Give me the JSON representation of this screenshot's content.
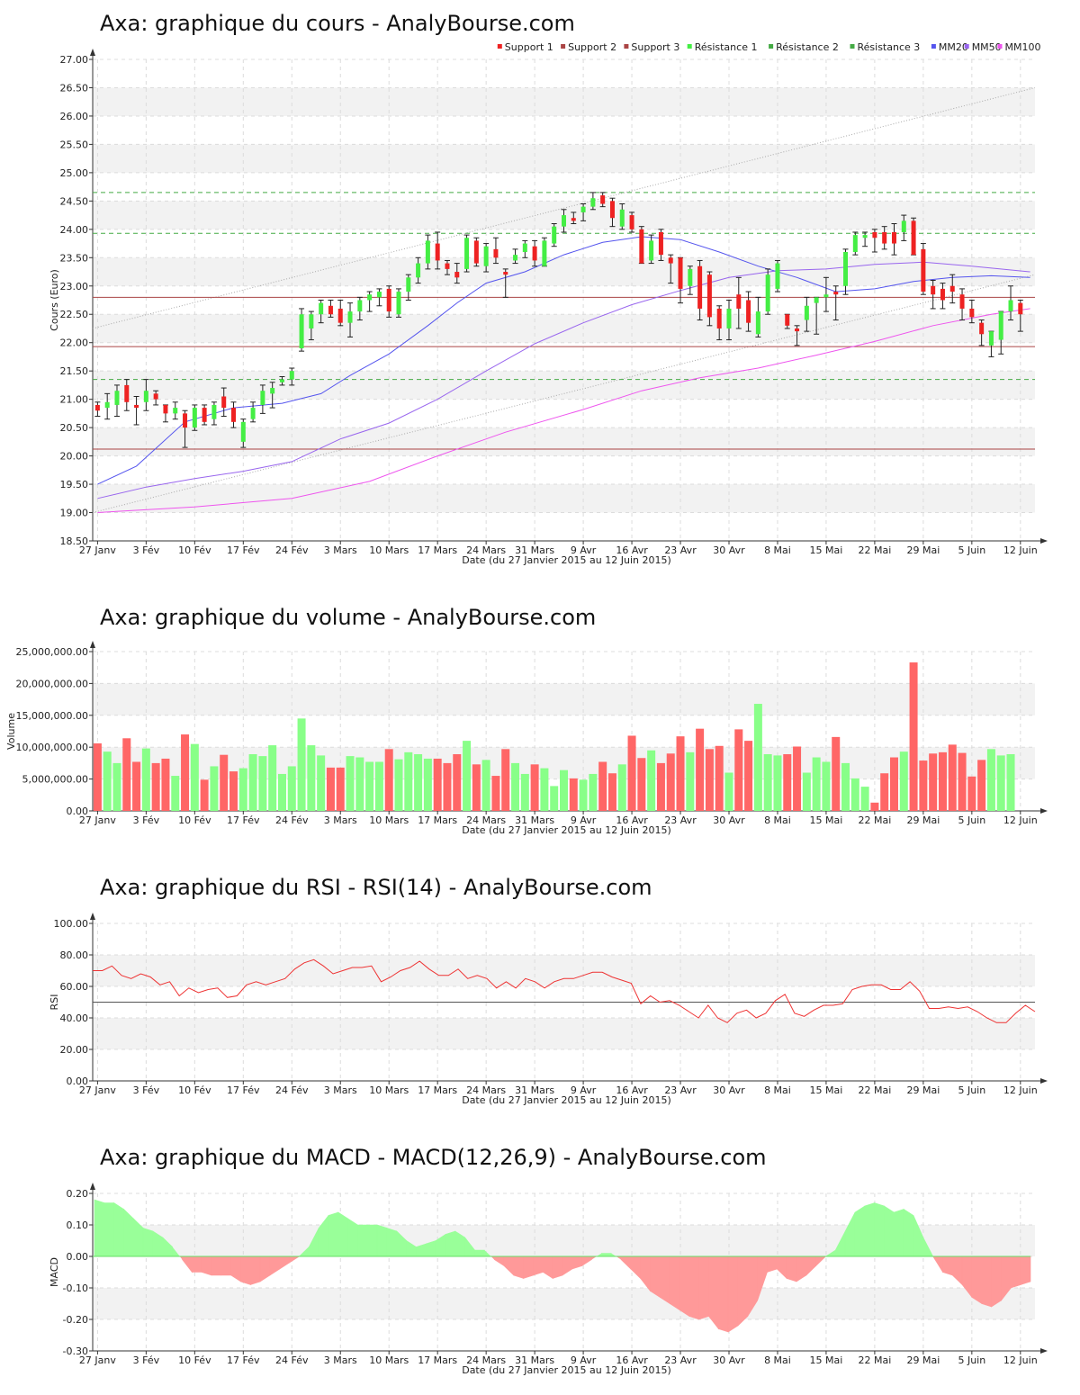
{
  "titles": {
    "price": "Axa: graphique du cours - AnalyBourse.com",
    "volume": "Axa: graphique du volume - AnalyBourse.com",
    "rsi": "Axa: graphique du RSI - RSI(14) - AnalyBourse.com",
    "macd": "Axa: graphique du MACD - MACD(12,26,9) - AnalyBourse.com"
  },
  "xlabel": "Date (du 27 Janvier 2015 au 12 Juin 2015)",
  "colors": {
    "up": "#44ee44",
    "down": "#ee2222",
    "vol_up": "#88ff88",
    "vol_down": "#ff6666",
    "support": "#aa4444",
    "resistance": "#44aa44",
    "mm20": "#5555ee",
    "mm50": "#9966ee",
    "mm100": "#ee55ee",
    "rsi_line": "#ee3333",
    "macd_pos": "#99ff99",
    "macd_neg": "#ff9999"
  },
  "chart_data": [
    {
      "type": "candlestick",
      "title": "Axa: graphique du cours - AnalyBourse.com",
      "xlabel": "Date (du 27 Janvier 2015 au 12 Juin 2015)",
      "ylabel": "Cours (Euro)",
      "ylim": [
        18.5,
        27.0
      ],
      "yticks": [
        "18.50",
        "19.00",
        "19.50",
        "20.00",
        "20.50",
        "21.00",
        "21.50",
        "22.00",
        "22.50",
        "23.00",
        "23.50",
        "24.00",
        "24.50",
        "25.00",
        "25.50",
        "26.00",
        "26.50",
        "27.00"
      ],
      "xticks": [
        "27 Janv",
        "3 Fév",
        "10 Fév",
        "17 Fév",
        "24 Fév",
        "3 Mars",
        "10 Mars",
        "17 Mars",
        "24 Mars",
        "31 Mars",
        "9 Avr",
        "16 Avr",
        "23 Avr",
        "30 Avr",
        "8 Mai",
        "15 Mai",
        "22 Mai",
        "29 Mai",
        "5 Juin",
        "12 Juin"
      ],
      "legend": [
        "Support 1",
        "Support 2",
        "Support 3",
        "Résistance 1",
        "Résistance 2",
        "Résistance 3",
        "MM20",
        "MM50",
        "MM100"
      ],
      "legend_position": "top-right",
      "levels": {
        "support_1": 22.8,
        "support_2": 21.93,
        "support_3": 20.12,
        "resistance_1": 24.65,
        "resistance_2": 23.93,
        "resistance_3": 21.35
      },
      "trend_upper": [
        22.25,
        26.5
      ],
      "trend_lower": [
        19.0,
        23.2
      ],
      "ohlc": [
        [
          20.9,
          20.95,
          20.7,
          20.8
        ],
        [
          20.85,
          21.1,
          20.65,
          20.95
        ],
        [
          20.9,
          21.25,
          20.7,
          21.15
        ],
        [
          21.25,
          21.35,
          20.8,
          20.95
        ],
        [
          20.9,
          21.05,
          20.55,
          20.85
        ],
        [
          20.95,
          21.35,
          20.8,
          21.15
        ],
        [
          21.1,
          21.15,
          20.9,
          21.0
        ],
        [
          20.9,
          20.9,
          20.6,
          20.75
        ],
        [
          20.75,
          20.95,
          20.65,
          20.85
        ],
        [
          20.75,
          20.8,
          20.15,
          20.5
        ],
        [
          20.5,
          20.9,
          20.45,
          20.85
        ],
        [
          20.85,
          20.9,
          20.55,
          20.6
        ],
        [
          20.65,
          20.95,
          20.55,
          20.9
        ],
        [
          21.05,
          21.2,
          20.7,
          20.85
        ],
        [
          20.85,
          20.95,
          20.5,
          20.6
        ],
        [
          20.25,
          20.65,
          20.15,
          20.6
        ],
        [
          20.65,
          20.95,
          20.6,
          20.85
        ],
        [
          20.9,
          21.25,
          20.75,
          21.15
        ],
        [
          21.1,
          21.3,
          20.85,
          21.2
        ],
        [
          21.3,
          21.4,
          21.25,
          21.35
        ],
        [
          21.35,
          21.55,
          21.25,
          21.5
        ],
        [
          21.9,
          22.6,
          21.85,
          22.5
        ],
        [
          22.25,
          22.55,
          22.05,
          22.5
        ],
        [
          22.5,
          22.75,
          22.35,
          22.7
        ],
        [
          22.65,
          22.75,
          22.45,
          22.5
        ],
        [
          22.6,
          22.75,
          22.3,
          22.35
        ],
        [
          22.35,
          22.7,
          22.1,
          22.55
        ],
        [
          22.55,
          22.8,
          22.4,
          22.75
        ],
        [
          22.75,
          22.9,
          22.55,
          22.85
        ],
        [
          22.8,
          22.95,
          22.65,
          22.9
        ],
        [
          22.95,
          23.0,
          22.45,
          22.55
        ],
        [
          22.5,
          22.95,
          22.45,
          22.9
        ],
        [
          22.9,
          23.2,
          22.75,
          23.15
        ],
        [
          23.15,
          23.5,
          23.05,
          23.4
        ],
        [
          23.4,
          23.9,
          23.3,
          23.8
        ],
        [
          23.75,
          23.95,
          23.3,
          23.45
        ],
        [
          23.4,
          23.45,
          23.2,
          23.3
        ],
        [
          23.25,
          23.4,
          23.05,
          23.15
        ],
        [
          23.3,
          23.9,
          23.25,
          23.85
        ],
        [
          23.8,
          23.85,
          23.35,
          23.4
        ],
        [
          23.35,
          23.75,
          23.25,
          23.7
        ],
        [
          23.65,
          23.85,
          23.4,
          23.5
        ],
        [
          23.25,
          23.3,
          22.8,
          23.2
        ],
        [
          23.45,
          23.65,
          23.4,
          23.55
        ],
        [
          23.6,
          23.8,
          23.5,
          23.75
        ],
        [
          23.7,
          23.8,
          23.35,
          23.45
        ],
        [
          23.35,
          23.85,
          23.35,
          23.8
        ],
        [
          23.75,
          24.1,
          23.7,
          24.05
        ],
        [
          24.05,
          24.35,
          23.95,
          24.25
        ],
        [
          24.2,
          24.3,
          24.1,
          24.15
        ],
        [
          24.3,
          24.45,
          24.15,
          24.4
        ],
        [
          24.4,
          24.65,
          24.35,
          24.55
        ],
        [
          24.6,
          24.65,
          24.4,
          24.45
        ],
        [
          24.5,
          24.55,
          24.05,
          24.2
        ],
        [
          24.05,
          24.45,
          24.0,
          24.35
        ],
        [
          24.25,
          24.3,
          23.95,
          24.0
        ],
        [
          24.0,
          24.05,
          23.4,
          23.4
        ],
        [
          23.45,
          23.9,
          23.4,
          23.8
        ],
        [
          23.95,
          24.0,
          23.45,
          23.55
        ],
        [
          23.5,
          23.55,
          23.05,
          23.4
        ],
        [
          23.5,
          23.5,
          22.7,
          22.95
        ],
        [
          23.0,
          23.35,
          22.85,
          23.3
        ],
        [
          23.35,
          23.45,
          22.4,
          22.6
        ],
        [
          23.2,
          23.25,
          22.3,
          22.45
        ],
        [
          22.6,
          22.65,
          22.05,
          22.25
        ],
        [
          22.25,
          22.75,
          22.05,
          22.6
        ],
        [
          22.85,
          23.15,
          22.25,
          22.6
        ],
        [
          22.75,
          22.9,
          22.2,
          22.35
        ],
        [
          22.15,
          22.8,
          22.1,
          22.55
        ],
        [
          22.55,
          23.3,
          22.5,
          23.2
        ],
        [
          22.95,
          23.45,
          22.9,
          23.4
        ],
        [
          22.5,
          22.5,
          22.25,
          22.3
        ],
        [
          22.25,
          22.3,
          21.95,
          22.2
        ],
        [
          22.4,
          22.8,
          22.2,
          22.65
        ],
        [
          22.7,
          22.8,
          22.15,
          22.8
        ],
        [
          22.8,
          23.15,
          22.55,
          22.85
        ],
        [
          22.9,
          23.0,
          22.4,
          22.85
        ],
        [
          23.0,
          23.65,
          22.85,
          23.6
        ],
        [
          23.6,
          23.95,
          23.55,
          23.9
        ],
        [
          23.85,
          23.95,
          23.7,
          23.9
        ],
        [
          23.95,
          24.0,
          23.6,
          23.85
        ],
        [
          23.95,
          24.05,
          23.65,
          23.75
        ],
        [
          23.95,
          24.1,
          23.55,
          23.75
        ],
        [
          23.95,
          24.25,
          23.8,
          24.15
        ],
        [
          24.15,
          24.2,
          23.55,
          23.55
        ],
        [
          23.65,
          23.75,
          22.85,
          22.9
        ],
        [
          23.0,
          23.1,
          22.6,
          22.85
        ],
        [
          22.95,
          23.05,
          22.6,
          22.75
        ],
        [
          23.0,
          23.2,
          22.7,
          22.9
        ],
        [
          22.85,
          22.95,
          22.4,
          22.6
        ],
        [
          22.6,
          22.75,
          22.35,
          22.45
        ],
        [
          22.35,
          22.4,
          21.95,
          22.15
        ],
        [
          21.95,
          22.2,
          21.75,
          22.2
        ],
        [
          22.05,
          22.55,
          21.8,
          22.55
        ],
        [
          22.55,
          23.0,
          22.4,
          22.75
        ],
        [
          22.7,
          22.75,
          22.2,
          22.5
        ]
      ],
      "mm20": [
        [
          0,
          19.5
        ],
        [
          4,
          19.82
        ],
        [
          9,
          20.6
        ],
        [
          14,
          20.85
        ],
        [
          19,
          20.93
        ],
        [
          23,
          21.1
        ],
        [
          26,
          21.42
        ],
        [
          30,
          21.8
        ],
        [
          34,
          22.3
        ],
        [
          37,
          22.7
        ],
        [
          40,
          23.05
        ],
        [
          44,
          23.25
        ],
        [
          48,
          23.55
        ],
        [
          52,
          23.77
        ],
        [
          56,
          23.87
        ],
        [
          60,
          23.82
        ],
        [
          64,
          23.6
        ],
        [
          68,
          23.35
        ],
        [
          72,
          23.15
        ],
        [
          76,
          22.9
        ],
        [
          80,
          22.95
        ],
        [
          84,
          23.08
        ],
        [
          88,
          23.15
        ],
        [
          92,
          23.18
        ],
        [
          96,
          23.15
        ]
      ],
      "mm50": [
        [
          0,
          19.25
        ],
        [
          5,
          19.45
        ],
        [
          10,
          19.6
        ],
        [
          15,
          19.73
        ],
        [
          20,
          19.9
        ],
        [
          25,
          20.3
        ],
        [
          30,
          20.58
        ],
        [
          35,
          21.0
        ],
        [
          40,
          21.5
        ],
        [
          45,
          21.98
        ],
        [
          50,
          22.35
        ],
        [
          55,
          22.67
        ],
        [
          60,
          22.92
        ],
        [
          65,
          23.15
        ],
        [
          70,
          23.27
        ],
        [
          75,
          23.3
        ],
        [
          80,
          23.38
        ],
        [
          85,
          23.42
        ],
        [
          90,
          23.35
        ],
        [
          96,
          23.25
        ]
      ],
      "mm100": [
        [
          0,
          19.0
        ],
        [
          10,
          19.1
        ],
        [
          20,
          19.25
        ],
        [
          28,
          19.55
        ],
        [
          35,
          20.0
        ],
        [
          42,
          20.42
        ],
        [
          50,
          20.82
        ],
        [
          56,
          21.15
        ],
        [
          62,
          21.38
        ],
        [
          68,
          21.55
        ],
        [
          74,
          21.78
        ],
        [
          80,
          22.02
        ],
        [
          86,
          22.3
        ],
        [
          92,
          22.5
        ],
        [
          96,
          22.6
        ]
      ]
    },
    {
      "type": "bar",
      "title": "Axa: graphique du volume - AnalyBourse.com",
      "xlabel": "Date (du 27 Janvier 2015 au 12 Juin 2015)",
      "ylabel": "Volume",
      "ylim": [
        0,
        25000000
      ],
      "yticks": [
        "0.00",
        "5,000,000.00",
        "10,000,000.00",
        "15,000,000.00",
        "20,000,000.00",
        "25,000,000.00"
      ],
      "xticks": [
        "27 Janv",
        "3 Fév",
        "10 Fév",
        "17 Fév",
        "24 Fév",
        "3 Mars",
        "10 Mars",
        "17 Mars",
        "24 Mars",
        "31 Mars",
        "9 Avr",
        "16 Avr",
        "23 Avr",
        "30 Avr",
        "8 Mai",
        "15 Mai",
        "22 Mai",
        "29 Mai",
        "5 Juin",
        "12 Juin"
      ],
      "values": [
        10.6,
        9.3,
        7.5,
        11.4,
        7.7,
        9.8,
        7.5,
        8.2,
        5.5,
        12.0,
        10.5,
        4.9,
        7.0,
        8.8,
        6.2,
        6.7,
        8.9,
        8.6,
        10.3,
        5.8,
        7.0,
        14.5,
        10.3,
        8.7,
        6.8,
        6.8,
        8.6,
        8.4,
        7.7,
        7.7,
        9.7,
        8.1,
        9.2,
        8.9,
        8.2,
        8.2,
        7.5,
        8.9,
        11.0,
        7.3,
        8.0,
        5.5,
        9.7,
        7.5,
        5.8,
        7.3,
        6.7,
        3.9,
        6.4,
        5.1,
        4.9,
        5.8,
        7.7,
        5.9,
        7.3,
        11.8,
        8.3,
        9.5,
        7.5,
        9.0,
        11.7,
        9.2,
        12.9,
        9.7,
        10.2,
        6.0,
        12.8,
        11.0,
        16.8,
        8.9,
        8.7,
        8.9,
        10.1,
        6.0,
        8.4,
        7.7,
        11.6,
        7.5,
        5.1,
        3.8,
        1.3,
        5.9,
        8.4,
        9.3,
        23.3,
        7.9,
        9.0,
        9.2,
        10.4,
        9.1,
        5.4,
        8.0,
        9.7,
        8.7,
        8.9
      ]
    },
    {
      "type": "line",
      "title": "Axa: graphique du RSI - RSI(14) - AnalyBourse.com",
      "xlabel": "Date (du 27 Janvier 2015 au 12 Juin 2015)",
      "ylabel": "RSI",
      "ylim": [
        0,
        100
      ],
      "yticks": [
        "0.00",
        "20.00",
        "40.00",
        "60.00",
        "80.00",
        "100.00"
      ],
      "xticks": [
        "27 Janv",
        "3 Fév",
        "10 Fév",
        "17 Fév",
        "24 Fév",
        "3 Mars",
        "10 Mars",
        "17 Mars",
        "24 Mars",
        "31 Mars",
        "9 Avr",
        "16 Avr",
        "23 Avr",
        "30 Avr",
        "8 Mai",
        "15 Mai",
        "22 Mai",
        "29 Mai",
        "5 Juin",
        "12 Juin"
      ],
      "reference_line": 50,
      "values": [
        70,
        70,
        73,
        67,
        65,
        68,
        66,
        61,
        63,
        54,
        59,
        56,
        58,
        59,
        53,
        54,
        61,
        63,
        61,
        63,
        65,
        71,
        75,
        77,
        73,
        68,
        70,
        72,
        72,
        73,
        63,
        66,
        70,
        72,
        76,
        71,
        67,
        67,
        71,
        65,
        67,
        65,
        59,
        63,
        59,
        65,
        63,
        59,
        63,
        65,
        65,
        67,
        69,
        69,
        66,
        64,
        62,
        49,
        54,
        50,
        51,
        48,
        44,
        40,
        48,
        40,
        37,
        43,
        45,
        40,
        43,
        51,
        55,
        43,
        41,
        45,
        48,
        48,
        49,
        58,
        60,
        61,
        61,
        58,
        58,
        63,
        57,
        46,
        46,
        47,
        46,
        47,
        44,
        40,
        37,
        37,
        43,
        48,
        44
      ]
    },
    {
      "type": "area",
      "title": "Axa: graphique du MACD - MACD(12,26,9) - AnalyBourse.com",
      "xlabel": "Date (du 27 Janvier 2015 au 12 Juin 2015)",
      "ylabel": "MACD",
      "ylim": [
        -0.3,
        0.2
      ],
      "yticks": [
        "-0.30",
        "-0.20",
        "-0.10",
        "0.00",
        "0.10",
        "0.20"
      ],
      "xticks": [
        "27 Janv",
        "3 Fév",
        "10 Fév",
        "17 Fév",
        "24 Fév",
        "3 Mars",
        "10 Mars",
        "17 Mars",
        "24 Mars",
        "31 Mars",
        "9 Avr",
        "16 Avr",
        "23 Avr",
        "30 Avr",
        "8 Mai",
        "15 Mai",
        "22 Mai",
        "29 Mai",
        "5 Juin",
        "12 Juin"
      ],
      "values": [
        0.18,
        0.17,
        0.17,
        0.15,
        0.12,
        0.09,
        0.08,
        0.06,
        0.03,
        -0.01,
        -0.05,
        -0.05,
        -0.06,
        -0.06,
        -0.06,
        -0.08,
        -0.09,
        -0.08,
        -0.06,
        -0.04,
        -0.02,
        0.0,
        0.03,
        0.09,
        0.13,
        0.14,
        0.12,
        0.1,
        0.1,
        0.1,
        0.09,
        0.08,
        0.05,
        0.03,
        0.04,
        0.05,
        0.07,
        0.08,
        0.06,
        0.02,
        0.02,
        -0.01,
        -0.03,
        -0.06,
        -0.07,
        -0.06,
        -0.05,
        -0.07,
        -0.06,
        -0.04,
        -0.03,
        -0.01,
        0.01,
        0.01,
        -0.01,
        -0.04,
        -0.07,
        -0.11,
        -0.13,
        -0.15,
        -0.17,
        -0.19,
        -0.2,
        -0.19,
        -0.23,
        -0.24,
        -0.22,
        -0.19,
        -0.14,
        -0.05,
        -0.04,
        -0.07,
        -0.08,
        -0.06,
        -0.03,
        0.0,
        0.02,
        0.08,
        0.14,
        0.16,
        0.17,
        0.16,
        0.14,
        0.15,
        0.13,
        0.06,
        0.0,
        -0.05,
        -0.06,
        -0.09,
        -0.13,
        -0.15,
        -0.16,
        -0.14,
        -0.1,
        -0.09,
        -0.08
      ]
    }
  ]
}
